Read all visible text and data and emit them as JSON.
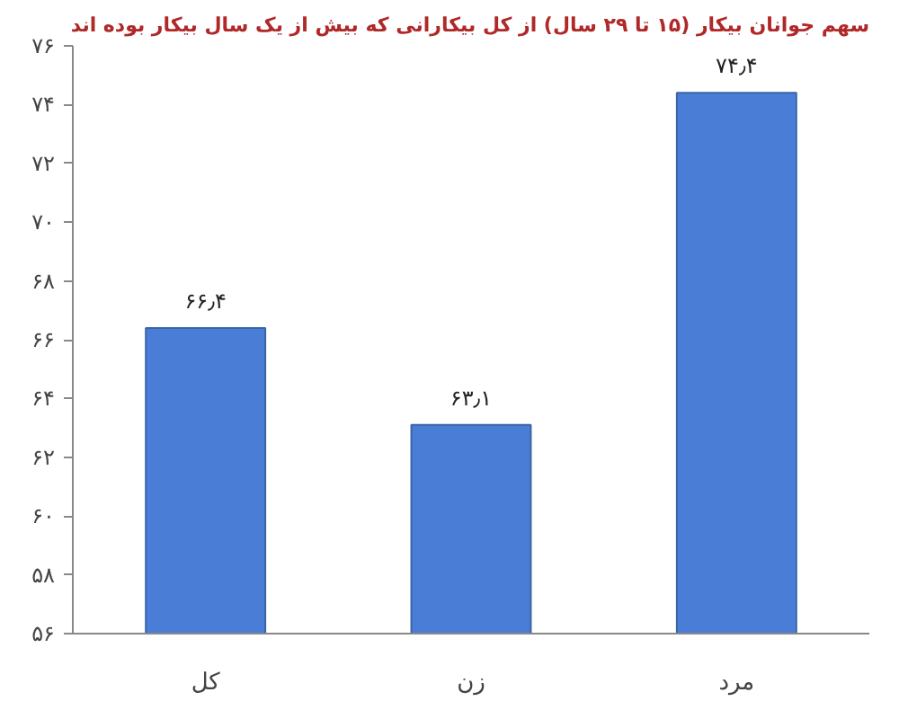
{
  "chart_data": {
    "type": "bar",
    "title": "سهم جوانان بیکار (۱۵ تا ۲۹ سال) از کل بیکارانی که بیش از یک سال بیکار بوده اند",
    "categories": [
      "کل",
      "زن",
      "مرد"
    ],
    "values": [
      66.4,
      63.1,
      74.4
    ],
    "value_labels": [
      "۶۶٫۴",
      "۶۳٫۱",
      "۷۴٫۴"
    ],
    "color": "#4a7ed6",
    "ylim": [
      56,
      76
    ],
    "yticks": [
      {
        "value": 56,
        "label": "۵۶"
      },
      {
        "value": 58,
        "label": "۵۸"
      },
      {
        "value": 60,
        "label": "۶۰"
      },
      {
        "value": 62,
        "label": "۶۲"
      },
      {
        "value": 64,
        "label": "۶۴"
      },
      {
        "value": 66,
        "label": "۶۶"
      },
      {
        "value": 68,
        "label": "۶۸"
      },
      {
        "value": 70,
        "label": "۷۰"
      },
      {
        "value": 72,
        "label": "۷۲"
      },
      {
        "value": 74,
        "label": "۷۴"
      },
      {
        "value": 76,
        "label": "۷۶"
      }
    ],
    "grid": false
  }
}
